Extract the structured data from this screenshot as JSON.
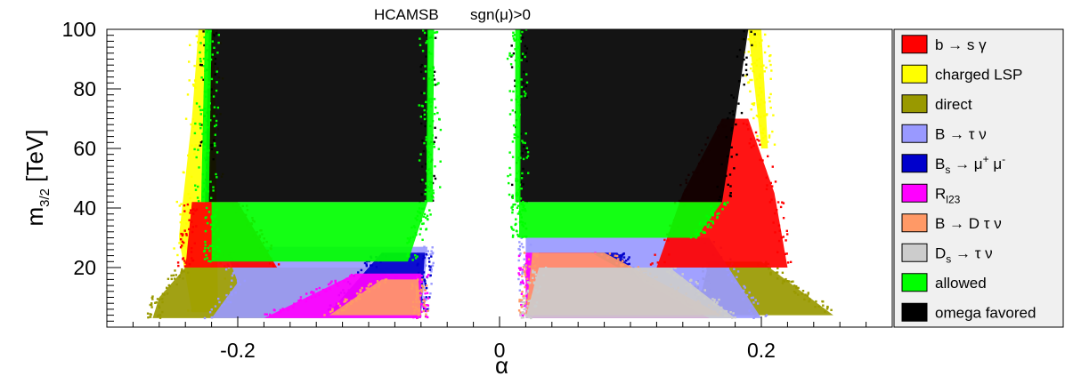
{
  "chart_data": {
    "type": "scatter",
    "title": "HCAMSB",
    "subtitle": "sgn(μ)>0",
    "xlabel": "α",
    "ylabel_main": "m",
    "ylabel_sub": "3/2",
    "ylabel_unit": " [TeV]",
    "xlim": [
      -0.3,
      0.3
    ],
    "ylim": [
      0,
      100
    ],
    "xticks": [
      -0.2,
      0,
      0.2
    ],
    "xtick_labels": [
      "-0.2",
      "0",
      "0.2"
    ],
    "yticks": [
      20,
      40,
      60,
      80,
      100
    ],
    "ytick_labels": [
      "20",
      "40",
      "60",
      "80",
      "100"
    ],
    "grid": false,
    "legend_position": "right",
    "series": [
      {
        "key": "bsg",
        "color": "#ff0000",
        "label": [
          "b → s γ"
        ]
      },
      {
        "key": "charged",
        "color": "#ffff00",
        "label": [
          "charged LSP"
        ]
      },
      {
        "key": "direct",
        "color": "#999900",
        "label": [
          "direct"
        ]
      },
      {
        "key": "btaunu",
        "color": "#9999ff",
        "label": [
          "B → τ ν"
        ]
      },
      {
        "key": "bsmumu",
        "color": "#0000cc",
        "label": [
          "B",
          "s",
          " → μ",
          "+",
          " μ",
          "-"
        ]
      },
      {
        "key": "rl23",
        "color": "#ff00ff",
        "label": [
          "R",
          "l23"
        ]
      },
      {
        "key": "bdtaunu",
        "color": "#ff9966",
        "label": [
          "B → D τ ν"
        ]
      },
      {
        "key": "dstaunu",
        "color": "#cccccc",
        "label": [
          "D",
          "s",
          " → τ ν"
        ]
      },
      {
        "key": "allowed",
        "color": "#00ff00",
        "label": [
          "allowed"
        ]
      },
      {
        "key": "omega",
        "color": "#000000",
        "label": [
          "omega favored"
        ]
      }
    ],
    "regions": [
      {
        "series": "charged",
        "y": [
          5,
          100
        ],
        "left_edge": [
          [
            5,
            -0.235
          ],
          [
            30,
            -0.245
          ],
          [
            70,
            -0.235
          ],
          [
            100,
            -0.23
          ]
        ],
        "right_edge": [
          [
            5,
            -0.215
          ],
          [
            100,
            -0.218
          ]
        ],
        "side": "neg"
      },
      {
        "series": "direct",
        "y": [
          3,
          20
        ],
        "left_edge": [
          [
            3,
            -0.265
          ],
          [
            10,
            -0.26
          ],
          [
            20,
            -0.24
          ]
        ],
        "right_edge": [
          [
            3,
            -0.06
          ],
          [
            20,
            -0.09
          ]
        ],
        "side": "neg"
      },
      {
        "series": "btaunu",
        "y": [
          3,
          27
        ],
        "left_edge": [
          [
            3,
            -0.22
          ],
          [
            15,
            -0.2
          ],
          [
            27,
            -0.21
          ]
        ],
        "right_edge": [
          [
            3,
            -0.06
          ],
          [
            27,
            -0.055
          ]
        ],
        "side": "neg"
      },
      {
        "series": "bsmumu",
        "y": [
          5,
          25
        ],
        "left_edge": [
          [
            5,
            -0.13
          ],
          [
            25,
            -0.09
          ]
        ],
        "right_edge": [
          [
            5,
            -0.06
          ],
          [
            25,
            -0.057
          ]
        ],
        "side": "neg"
      },
      {
        "series": "rl23",
        "y": [
          3,
          18
        ],
        "left_edge": [
          [
            3,
            -0.18
          ],
          [
            18,
            -0.11
          ]
        ],
        "right_edge": [
          [
            3,
            -0.06
          ],
          [
            18,
            -0.06
          ]
        ],
        "side": "neg"
      },
      {
        "series": "bdtaunu",
        "y": [
          4,
          16
        ],
        "left_edge": [
          [
            4,
            -0.13
          ],
          [
            16,
            -0.09
          ]
        ],
        "right_edge": [
          [
            4,
            -0.06
          ],
          [
            16,
            -0.062
          ]
        ],
        "side": "neg"
      },
      {
        "series": "bsg",
        "y": [
          20,
          42
        ],
        "left_edge": [
          [
            20,
            -0.24
          ],
          [
            42,
            -0.235
          ]
        ],
        "right_edge": [
          [
            20,
            -0.17
          ],
          [
            42,
            -0.2
          ]
        ],
        "side": "neg"
      },
      {
        "series": "allowed",
        "y": [
          22,
          42
        ],
        "left_edge": [
          [
            22,
            -0.22
          ],
          [
            42,
            -0.22
          ]
        ],
        "right_edge": [
          [
            22,
            -0.07
          ],
          [
            42,
            -0.055
          ]
        ],
        "side": "neg"
      },
      {
        "series": "omega",
        "y": [
          42,
          100
        ],
        "left_edge": [
          [
            42,
            -0.225
          ],
          [
            100,
            -0.222
          ]
        ],
        "right_edge": [
          [
            42,
            -0.055
          ],
          [
            100,
            -0.054
          ]
        ],
        "side": "neg"
      },
      {
        "series": "charged",
        "y": [
          60,
          100
        ],
        "left_edge": [
          [
            60,
            0.2
          ],
          [
            100,
            0.19
          ]
        ],
        "right_edge": [
          [
            60,
            0.205
          ],
          [
            100,
            0.2
          ]
        ],
        "side": "pos"
      },
      {
        "series": "direct",
        "y": [
          4,
          22
        ],
        "left_edge": [
          [
            4,
            0.15
          ],
          [
            22,
            0.16
          ]
        ],
        "right_edge": [
          [
            4,
            0.255
          ],
          [
            22,
            0.2
          ]
        ],
        "side": "pos"
      },
      {
        "series": "btaunu",
        "y": [
          3,
          30
        ],
        "left_edge": [
          [
            3,
            0.02
          ],
          [
            30,
            0.02
          ]
        ],
        "right_edge": [
          [
            3,
            0.2
          ],
          [
            30,
            0.16
          ]
        ],
        "side": "pos"
      },
      {
        "series": "bsmumu",
        "y": [
          5,
          25
        ],
        "left_edge": [
          [
            5,
            0.03
          ],
          [
            25,
            0.03
          ]
        ],
        "right_edge": [
          [
            5,
            0.13
          ],
          [
            25,
            0.09
          ]
        ],
        "side": "pos"
      },
      {
        "series": "rl23",
        "y": [
          3,
          25
        ],
        "left_edge": [
          [
            3,
            0.02
          ],
          [
            25,
            0.02
          ]
        ],
        "right_edge": [
          [
            3,
            0.16
          ],
          [
            25,
            0.07
          ]
        ],
        "side": "pos"
      },
      {
        "series": "bdtaunu",
        "y": [
          4,
          25
        ],
        "left_edge": [
          [
            4,
            0.02
          ],
          [
            25,
            0.025
          ]
        ],
        "right_edge": [
          [
            4,
            0.17
          ],
          [
            25,
            0.08
          ]
        ],
        "side": "pos"
      },
      {
        "series": "dstaunu",
        "y": [
          3,
          20
        ],
        "left_edge": [
          [
            3,
            0.02
          ],
          [
            20,
            0.03
          ]
        ],
        "right_edge": [
          [
            3,
            0.18
          ],
          [
            20,
            0.13
          ]
        ],
        "side": "pos"
      },
      {
        "series": "bsg",
        "y": [
          20,
          70
        ],
        "left_edge": [
          [
            20,
            0.12
          ],
          [
            45,
            0.14
          ],
          [
            70,
            0.17
          ]
        ],
        "right_edge": [
          [
            20,
            0.22
          ],
          [
            45,
            0.21
          ],
          [
            70,
            0.19
          ]
        ],
        "side": "pos"
      },
      {
        "series": "allowed",
        "y": [
          30,
          42
        ],
        "left_edge": [
          [
            30,
            0.015
          ],
          [
            42,
            0.015
          ]
        ],
        "right_edge": [
          [
            30,
            0.15
          ],
          [
            42,
            0.17
          ]
        ],
        "side": "pos"
      },
      {
        "series": "omega",
        "y": [
          42,
          100
        ],
        "left_edge": [
          [
            42,
            0.015
          ],
          [
            100,
            0.015
          ]
        ],
        "right_edge": [
          [
            42,
            0.17
          ],
          [
            70,
            0.18
          ],
          [
            100,
            0.19
          ]
        ],
        "side": "pos"
      },
      {
        "series": "allowed",
        "y": [
          42,
          100
        ],
        "left_edge": [
          [
            42,
            0.012
          ],
          [
            100,
            0.012
          ]
        ],
        "right_edge": [
          [
            42,
            0.016
          ],
          [
            100,
            0.016
          ]
        ],
        "side": "pos"
      },
      {
        "series": "allowed",
        "y": [
          42,
          100
        ],
        "left_edge": [
          [
            42,
            -0.056
          ],
          [
            100,
            -0.055
          ]
        ],
        "right_edge": [
          [
            42,
            -0.051
          ],
          [
            100,
            -0.05
          ]
        ],
        "side": "neg"
      },
      {
        "series": "allowed",
        "y": [
          42,
          100
        ],
        "left_edge": [
          [
            42,
            -0.228
          ],
          [
            100,
            -0.225
          ]
        ],
        "right_edge": [
          [
            42,
            -0.222
          ],
          [
            100,
            -0.22
          ]
        ],
        "side": "neg"
      }
    ]
  }
}
